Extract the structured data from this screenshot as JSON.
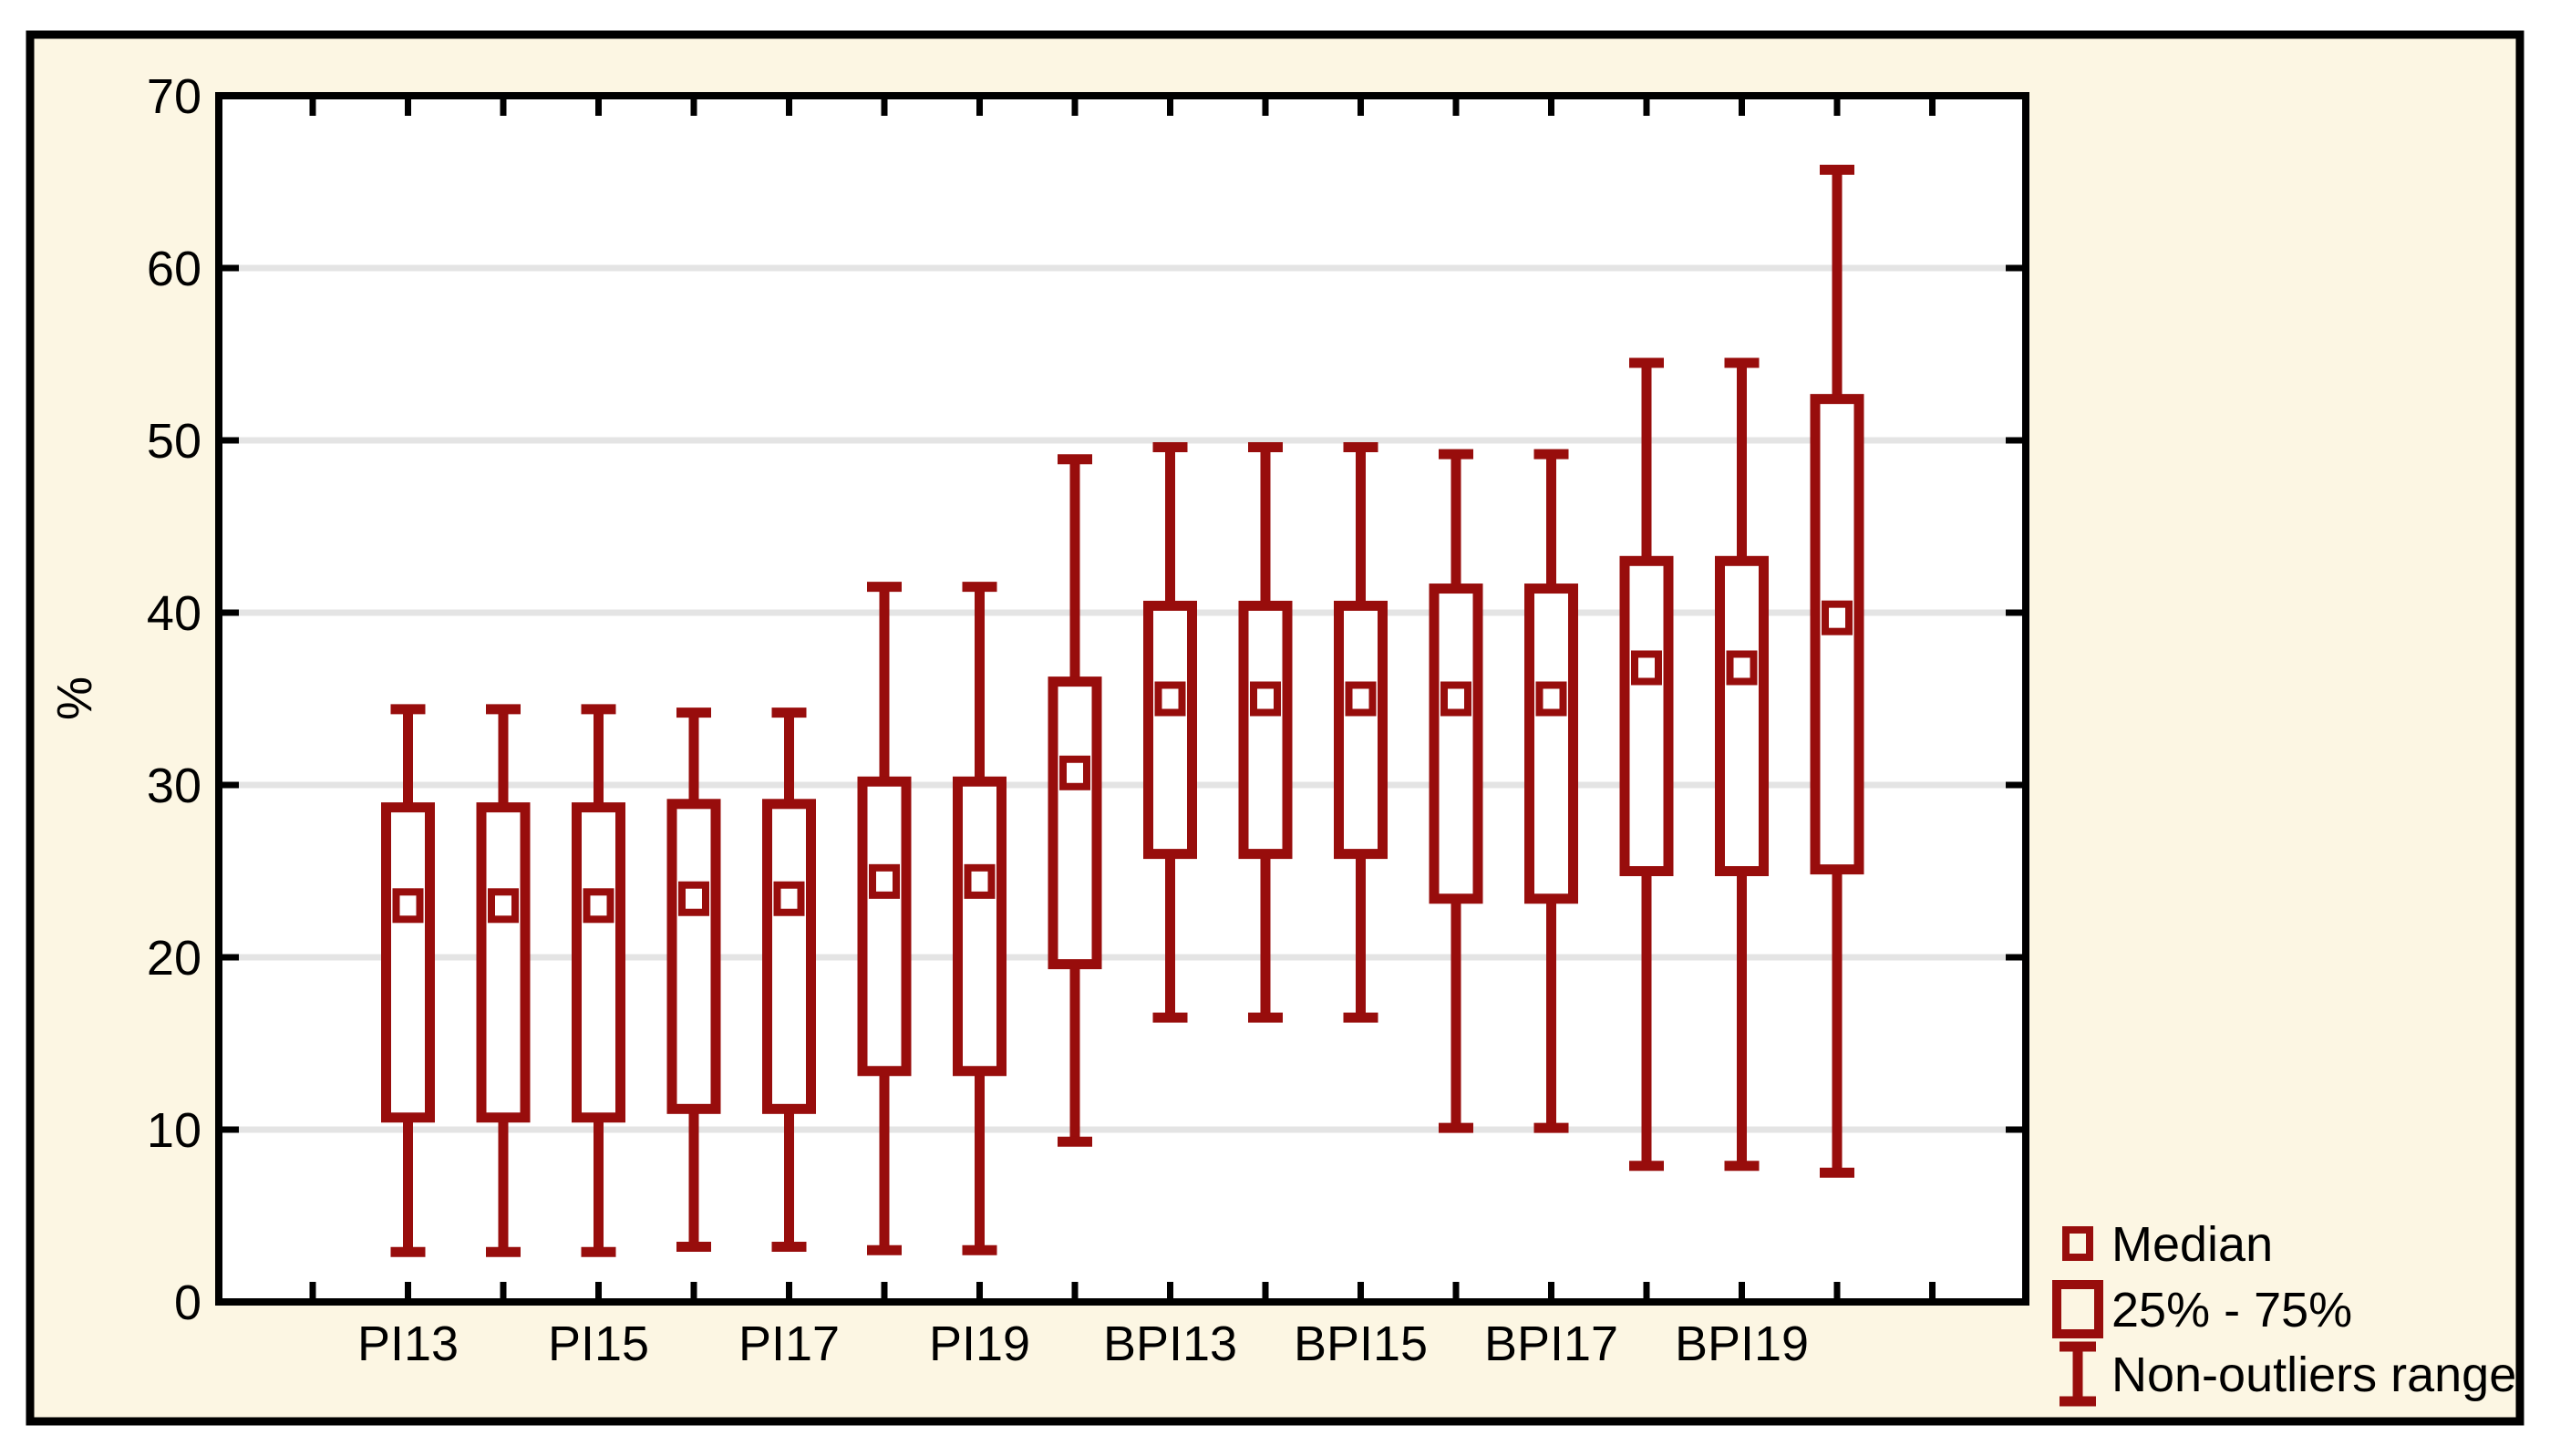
{
  "colors": {
    "figure_background": "#FCF6E3",
    "plot_background": "#FFFFFF",
    "border": "#000000",
    "grid": "#E4E4E4",
    "series": "#980D0C",
    "text": "#000000"
  },
  "chart_data": {
    "type": "boxplot",
    "title": "",
    "xlabel": "",
    "ylabel": "%",
    "ylim": [
      0,
      70
    ],
    "yticks": [
      "0",
      "10",
      "20",
      "30",
      "40",
      "50",
      "60",
      "70"
    ],
    "grid": "horizontal",
    "categories": [
      "PI13",
      "PI15",
      "PI17",
      "PI19",
      "BPI13",
      "BPI15",
      "BPI17",
      "BPI19"
    ],
    "boxes": [
      {
        "label": "PI13",
        "low": 2.9,
        "q1": 10.7,
        "median": 23.0,
        "q3": 28.7,
        "high": 34.4
      },
      {
        "label": "",
        "low": 2.9,
        "q1": 10.7,
        "median": 23.0,
        "q3": 28.7,
        "high": 34.4
      },
      {
        "label": "PI15",
        "low": 2.9,
        "q1": 10.7,
        "median": 23.0,
        "q3": 28.7,
        "high": 34.4
      },
      {
        "label": "",
        "low": 3.2,
        "q1": 11.2,
        "median": 23.4,
        "q3": 28.9,
        "high": 34.2
      },
      {
        "label": "PI17",
        "low": 3.2,
        "q1": 11.2,
        "median": 23.4,
        "q3": 28.9,
        "high": 34.2
      },
      {
        "label": "",
        "low": 3.0,
        "q1": 13.4,
        "median": 24.4,
        "q3": 30.2,
        "high": 41.5
      },
      {
        "label": "PI19",
        "low": 3.0,
        "q1": 13.4,
        "median": 24.4,
        "q3": 30.2,
        "high": 41.5
      },
      {
        "label": "",
        "low": 9.3,
        "q1": 19.6,
        "median": 30.7,
        "q3": 36.0,
        "high": 48.9
      },
      {
        "label": "BPI13",
        "low": 16.5,
        "q1": 26.0,
        "median": 35.0,
        "q3": 40.4,
        "high": 49.6
      },
      {
        "label": "",
        "low": 16.5,
        "q1": 26.0,
        "median": 35.0,
        "q3": 40.4,
        "high": 49.6
      },
      {
        "label": "BPI15",
        "low": 16.5,
        "q1": 26.0,
        "median": 35.0,
        "q3": 40.4,
        "high": 49.6
      },
      {
        "label": "",
        "low": 10.1,
        "q1": 23.4,
        "median": 35.0,
        "q3": 41.4,
        "high": 49.2
      },
      {
        "label": "BPI17",
        "low": 10.1,
        "q1": 23.4,
        "median": 35.0,
        "q3": 41.4,
        "high": 49.2
      },
      {
        "label": "",
        "low": 7.9,
        "q1": 25.0,
        "median": 36.8,
        "q3": 43.0,
        "high": 54.5
      },
      {
        "label": "BPI19",
        "low": 7.9,
        "q1": 25.0,
        "median": 36.8,
        "q3": 43.0,
        "high": 54.5
      },
      {
        "label": "",
        "low": 7.5,
        "q1": 25.1,
        "median": 39.7,
        "q3": 52.4,
        "high": 65.7
      }
    ],
    "legend_position": "bottom-right",
    "legend": [
      {
        "symbol": "median-marker",
        "label": "Median"
      },
      {
        "symbol": "box",
        "label": "25% - 75%"
      },
      {
        "symbol": "whisker",
        "label": "Non-outliers range"
      }
    ]
  }
}
